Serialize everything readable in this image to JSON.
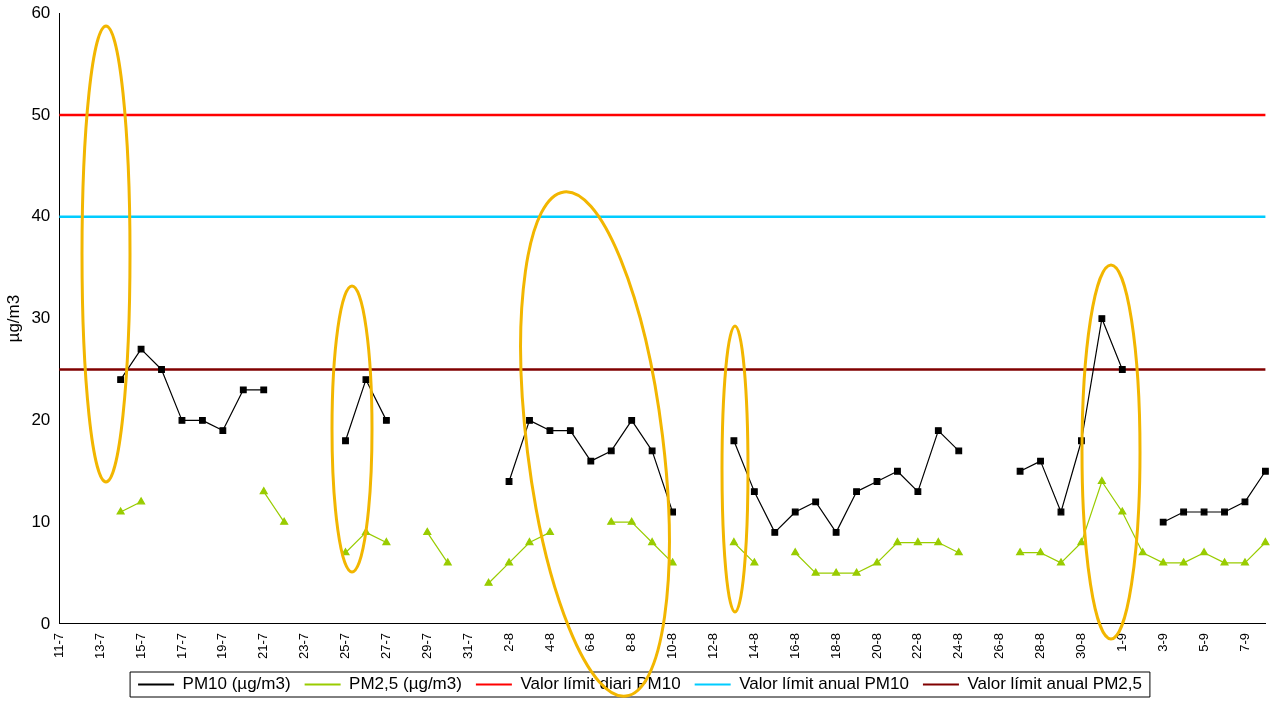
{
  "chart_data": {
    "type": "line",
    "ylabel": "µg/m3",
    "ylim": [
      0,
      60
    ],
    "yticks": [
      0,
      10,
      20,
      30,
      40,
      50,
      60
    ],
    "grid": false,
    "legend": "bottom",
    "categories": [
      "11-7",
      null,
      "13-7",
      null,
      "15-7",
      null,
      "17-7",
      null,
      "19-7",
      null,
      "21-7",
      null,
      "23-7",
      null,
      "25-7",
      null,
      "27-7",
      null,
      "29-7",
      null,
      "31-7",
      null,
      "2-8",
      null,
      "4-8",
      null,
      "6-8",
      null,
      "8-8",
      null,
      "10-8",
      null,
      "12-8",
      null,
      "14-8",
      null,
      "16-8",
      null,
      "18-8",
      null,
      "20-8",
      null,
      "22-8",
      null,
      "24-8",
      null,
      "26-8",
      null,
      "28-8",
      null,
      "30-8",
      null,
      "1-9",
      null,
      "3-9",
      null,
      "5-9",
      null,
      "7-9",
      null
    ],
    "series": [
      {
        "name": "PM10 (µg/m3)",
        "color": "#000000",
        "marker": "square",
        "values": [
          null,
          null,
          null,
          24,
          27,
          25,
          20,
          20,
          19,
          23,
          23,
          null,
          null,
          null,
          18,
          24,
          20,
          null,
          null,
          null,
          null,
          null,
          14,
          20,
          19,
          19,
          16,
          17,
          20,
          17,
          11,
          null,
          null,
          18,
          13,
          9,
          11,
          12,
          9,
          13,
          14,
          15,
          13,
          19,
          17,
          null,
          null,
          15,
          16,
          11,
          18,
          30,
          25,
          null,
          10,
          11,
          11,
          11,
          12,
          15
        ]
      },
      {
        "name": "PM2,5 (µg/m3)",
        "color": "#99cc00",
        "marker": "triangle",
        "values": [
          null,
          null,
          null,
          11,
          12,
          null,
          null,
          null,
          null,
          null,
          13,
          10,
          null,
          null,
          7,
          9,
          8,
          null,
          9,
          6,
          null,
          4,
          6,
          8,
          9,
          null,
          null,
          10,
          10,
          8,
          6,
          null,
          null,
          8,
          6,
          null,
          7,
          5,
          5,
          5,
          6,
          8,
          8,
          8,
          7,
          null,
          null,
          7,
          7,
          6,
          8,
          14,
          11,
          7,
          6,
          6,
          7,
          6,
          6,
          8
        ]
      },
      {
        "name": "Valor límit diari PM10",
        "color": "#ff0000",
        "marker": "none",
        "values": [
          50,
          50,
          50,
          50,
          50,
          50,
          50,
          50,
          50,
          50,
          50,
          50,
          50,
          50,
          50,
          50,
          50,
          50,
          50,
          50,
          50,
          50,
          50,
          50,
          50,
          50,
          50,
          50,
          50,
          50,
          50,
          50,
          50,
          50,
          50,
          50,
          50,
          50,
          50,
          50,
          50,
          50,
          50,
          50,
          50,
          50,
          50,
          50,
          50,
          50,
          50,
          50,
          50,
          50,
          50,
          50,
          50,
          50,
          50,
          50
        ]
      },
      {
        "name": "Valor límit anual PM10",
        "color": "#00ccff",
        "marker": "none",
        "values": [
          40,
          40,
          40,
          40,
          40,
          40,
          40,
          40,
          40,
          40,
          40,
          40,
          40,
          40,
          40,
          40,
          40,
          40,
          40,
          40,
          40,
          40,
          40,
          40,
          40,
          40,
          40,
          40,
          40,
          40,
          40,
          40,
          40,
          40,
          40,
          40,
          40,
          40,
          40,
          40,
          40,
          40,
          40,
          40,
          40,
          40,
          40,
          40,
          40,
          40,
          40,
          40,
          40,
          40,
          40,
          40,
          40,
          40,
          40,
          40
        ]
      },
      {
        "name": "Valor límit anual PM2,5",
        "color": "#800000",
        "marker": "none",
        "values": [
          25,
          25,
          25,
          25,
          25,
          25,
          25,
          25,
          25,
          25,
          25,
          25,
          25,
          25,
          25,
          25,
          25,
          25,
          25,
          25,
          25,
          25,
          25,
          25,
          25,
          25,
          25,
          25,
          25,
          25,
          25,
          25,
          25,
          25,
          25,
          25,
          25,
          25,
          25,
          25,
          25,
          25,
          25,
          25,
          25,
          25,
          25,
          25,
          25,
          25,
          25,
          25,
          25,
          25,
          25,
          25,
          25,
          25,
          25,
          25
        ]
      }
    ]
  }
}
